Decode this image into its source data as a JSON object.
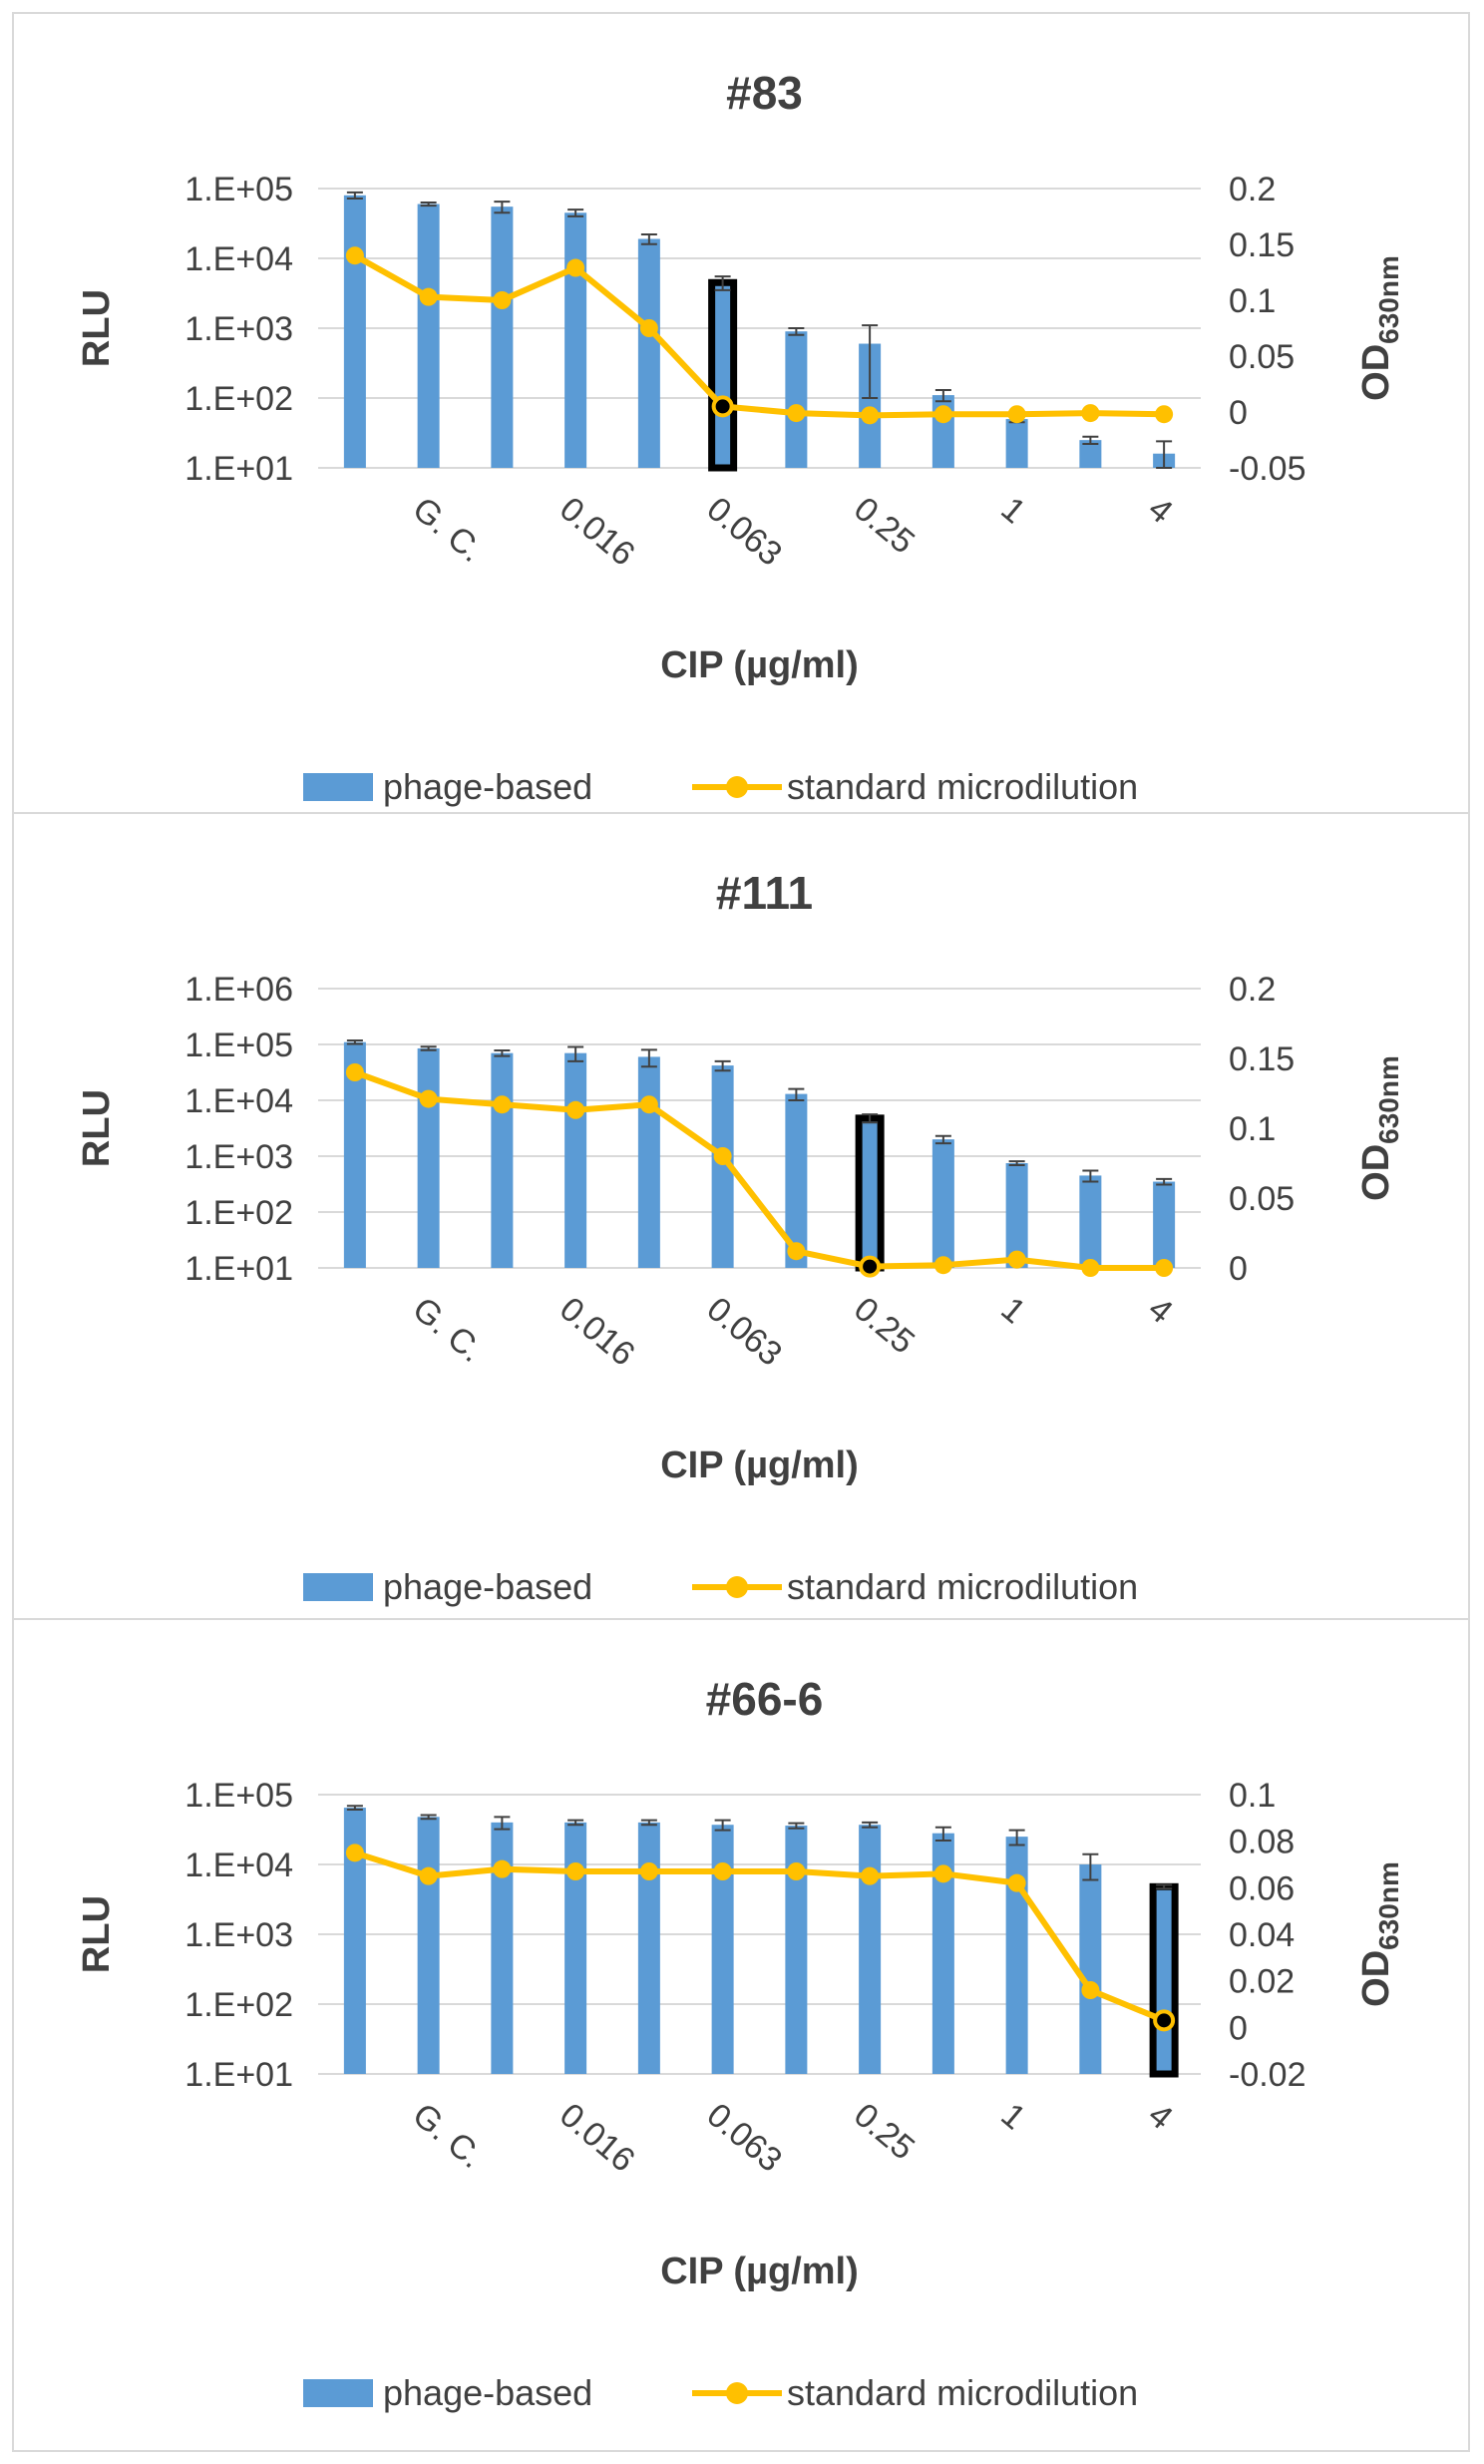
{
  "chart_data": [
    {
      "type": "bar",
      "title": "#83",
      "xlabel": "CIP (µg/ml)",
      "ylabel": "RLU",
      "y2label_main": "OD",
      "y2label_sub": "630nm",
      "y_scale": "log",
      "ylim": [
        10,
        100000
      ],
      "y_ticks": [
        "1.E+01",
        "1.E+02",
        "1.E+03",
        "1.E+04",
        "1.E+05"
      ],
      "y2lim": [
        -0.05,
        0.2
      ],
      "y2_ticks": [
        "-0.05",
        "0",
        "0.05",
        "0.1",
        "0.15",
        "0.2"
      ],
      "grid": true,
      "legend_position": "bottom",
      "x_ticklabels": [
        "G. C.",
        "0.016",
        "0.063",
        "0.25",
        "1",
        "4"
      ],
      "x_ticklabel_positions": [
        1,
        3,
        5,
        7,
        9,
        11
      ],
      "highlight_index": 5,
      "series": [
        {
          "name": "phage-based",
          "type": "bar",
          "axis": "left",
          "color": "#5b9bd5",
          "values": [
            80000,
            60000,
            55000,
            45000,
            19000,
            4500,
            900,
            600,
            110,
            50,
            25,
            16
          ],
          "error": [
            8000,
            3000,
            10000,
            5000,
            3000,
            1000,
            100,
            500,
            20,
            5,
            3,
            8
          ]
        },
        {
          "name": "standard microdilution",
          "type": "line",
          "axis": "right",
          "color": "#ffc000",
          "values": [
            0.14,
            0.103,
            0.1,
            0.129,
            0.075,
            0.005,
            -0.001,
            -0.003,
            -0.002,
            -0.002,
            -0.001,
            -0.002
          ]
        }
      ]
    },
    {
      "type": "bar",
      "title": "#111",
      "xlabel": "CIP (µg/ml)",
      "ylabel": "RLU",
      "y2label_main": "OD",
      "y2label_sub": "630nm",
      "y_scale": "log",
      "ylim": [
        10,
        1000000
      ],
      "y_ticks": [
        "1.E+01",
        "1.E+02",
        "1.E+03",
        "1.E+04",
        "1.E+05",
        "1.E+06"
      ],
      "y2lim": [
        0,
        0.2
      ],
      "y2_ticks": [
        "0",
        "0.05",
        "0.1",
        "0.15",
        "0.2"
      ],
      "grid": true,
      "legend_position": "bottom",
      "x_ticklabels": [
        "G. C.",
        "0.016",
        "0.063",
        "0.25",
        "1",
        "4"
      ],
      "x_ticklabel_positions": [
        1,
        3,
        5,
        7,
        9,
        11
      ],
      "highlight_index": 7,
      "series": [
        {
          "name": "phage-based",
          "type": "bar",
          "axis": "left",
          "color": "#5b9bd5",
          "values": [
            110000,
            85000,
            70000,
            70000,
            60000,
            42000,
            13000,
            4800,
            2000,
            750,
            450,
            350
          ],
          "error": [
            8000,
            6000,
            8000,
            20000,
            20000,
            8000,
            3000,
            800,
            300,
            60,
            100,
            40
          ]
        },
        {
          "name": "standard microdilution",
          "type": "line",
          "axis": "right",
          "color": "#ffc000",
          "values": [
            0.14,
            0.121,
            0.117,
            0.113,
            0.117,
            0.08,
            0.012,
            0.001,
            0.002,
            0.006,
            0.0,
            0.0
          ]
        }
      ]
    },
    {
      "type": "bar",
      "title": "#66-6",
      "xlabel": "CIP (µg/ml)",
      "ylabel": "RLU",
      "y2label_main": "OD",
      "y2label_sub": "630nm",
      "y_scale": "log",
      "ylim": [
        10,
        100000
      ],
      "y_ticks": [
        "1.E+01",
        "1.E+02",
        "1.E+03",
        "1.E+04",
        "1.E+05"
      ],
      "y2lim": [
        -0.02,
        0.1
      ],
      "y2_ticks": [
        "-0.02",
        "0",
        "0.02",
        "0.04",
        "0.06",
        "0.08",
        "0.1"
      ],
      "grid": true,
      "legend_position": "bottom",
      "x_ticklabels": [
        "G. C.",
        "0.016",
        "0.063",
        "0.25",
        "1",
        "4"
      ],
      "x_ticklabel_positions": [
        1,
        3,
        5,
        7,
        9,
        11
      ],
      "highlight_index": 11,
      "series": [
        {
          "name": "phage-based",
          "type": "bar",
          "axis": "left",
          "color": "#5b9bd5",
          "values": [
            65000,
            48000,
            40000,
            40000,
            40000,
            37000,
            36000,
            37000,
            28000,
            25000,
            10000,
            4800
          ],
          "error": [
            4000,
            3000,
            8000,
            3000,
            3000,
            6000,
            3000,
            3000,
            6000,
            6000,
            4000,
            300
          ]
        },
        {
          "name": "standard microdilution",
          "type": "line",
          "axis": "right",
          "color": "#ffc000",
          "values": [
            0.075,
            0.065,
            0.068,
            0.067,
            0.067,
            0.067,
            0.067,
            0.065,
            0.066,
            0.062,
            0.016,
            0.003
          ]
        }
      ]
    }
  ]
}
